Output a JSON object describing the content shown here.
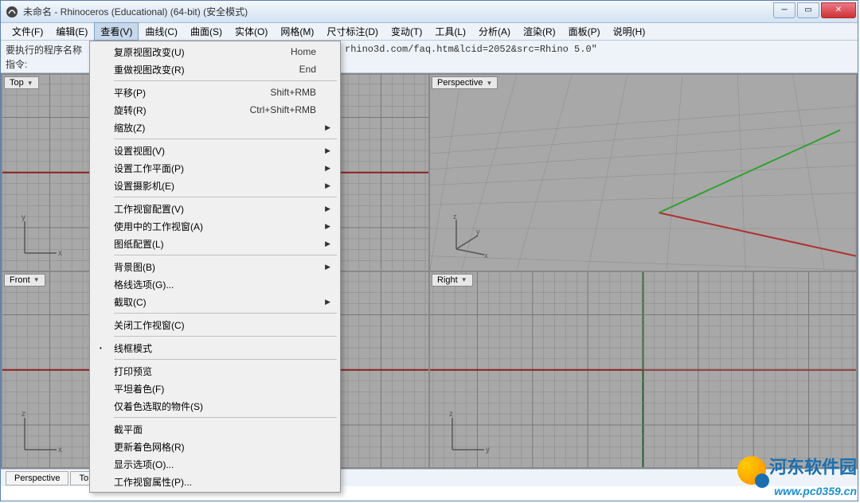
{
  "title": "未命名 - Rhinoceros (Educational) (64-bit) (安全模式)",
  "menubar": [
    "文件(F)",
    "编辑(E)",
    "查看(V)",
    "曲线(C)",
    "曲面(S)",
    "实体(O)",
    "网格(M)",
    "尺寸标注(D)",
    "变动(T)",
    "工具(L)",
    "分析(A)",
    "渲染(R)",
    "面板(P)",
    "说明(H)"
  ],
  "active_menu_index": 2,
  "cmd": {
    "label1": "要执行的程序名称",
    "text1": "rhino3d.com/faq.htm&lcid=2052&src=Rhino 5.0\"",
    "label2": "指令:"
  },
  "viewports": {
    "tl": {
      "label": "Top",
      "axes": [
        "x",
        "y"
      ]
    },
    "tr": {
      "label": "Perspective",
      "axes": [
        "x",
        "y",
        "z"
      ]
    },
    "bl": {
      "label": "Front",
      "axes": [
        "x",
        "z"
      ]
    },
    "br": {
      "label": "Right",
      "axes": [
        "y",
        "z"
      ]
    }
  },
  "bottom_tabs": [
    "Perspective",
    "To"
  ],
  "dropdown": [
    {
      "label": "复原视图改变(U)",
      "shortcut": "Home"
    },
    {
      "label": "重做视图改变(R)",
      "shortcut": "End"
    },
    {
      "sep": true
    },
    {
      "label": "平移(P)",
      "shortcut": "Shift+RMB"
    },
    {
      "label": "旋转(R)",
      "shortcut": "Ctrl+Shift+RMB"
    },
    {
      "label": "缩放(Z)",
      "arrow": true
    },
    {
      "sep": true
    },
    {
      "label": "设置视图(V)",
      "arrow": true
    },
    {
      "label": "设置工作平面(P)",
      "arrow": true
    },
    {
      "label": "设置摄影机(E)",
      "arrow": true
    },
    {
      "sep": true
    },
    {
      "label": "工作视窗配置(V)",
      "arrow": true
    },
    {
      "label": "使用中的工作视窗(A)",
      "arrow": true
    },
    {
      "label": "图纸配置(L)",
      "arrow": true
    },
    {
      "sep": true
    },
    {
      "label": "背景图(B)",
      "arrow": true
    },
    {
      "label": "格线选项(G)..."
    },
    {
      "label": "截取(C)",
      "arrow": true
    },
    {
      "sep": true
    },
    {
      "label": "关闭工作视窗(C)"
    },
    {
      "sep": true
    },
    {
      "label": "线框模式",
      "bullet": true
    },
    {
      "sep": true
    },
    {
      "label": "打印预览"
    },
    {
      "label": "平坦着色(F)"
    },
    {
      "label": "仅着色选取的物件(S)"
    },
    {
      "sep": true
    },
    {
      "label": "截平面"
    },
    {
      "label": "更新着色网格(R)"
    },
    {
      "label": "显示选项(O)..."
    },
    {
      "label": "工作视窗属性(P)..."
    }
  ],
  "colors": {
    "axis_red": "#a02020",
    "axis_green": "#20a020",
    "grid_bg": "#a8a8a8"
  },
  "watermark": {
    "cn": "河东软件园",
    "url": "www.pc0359.cn"
  }
}
